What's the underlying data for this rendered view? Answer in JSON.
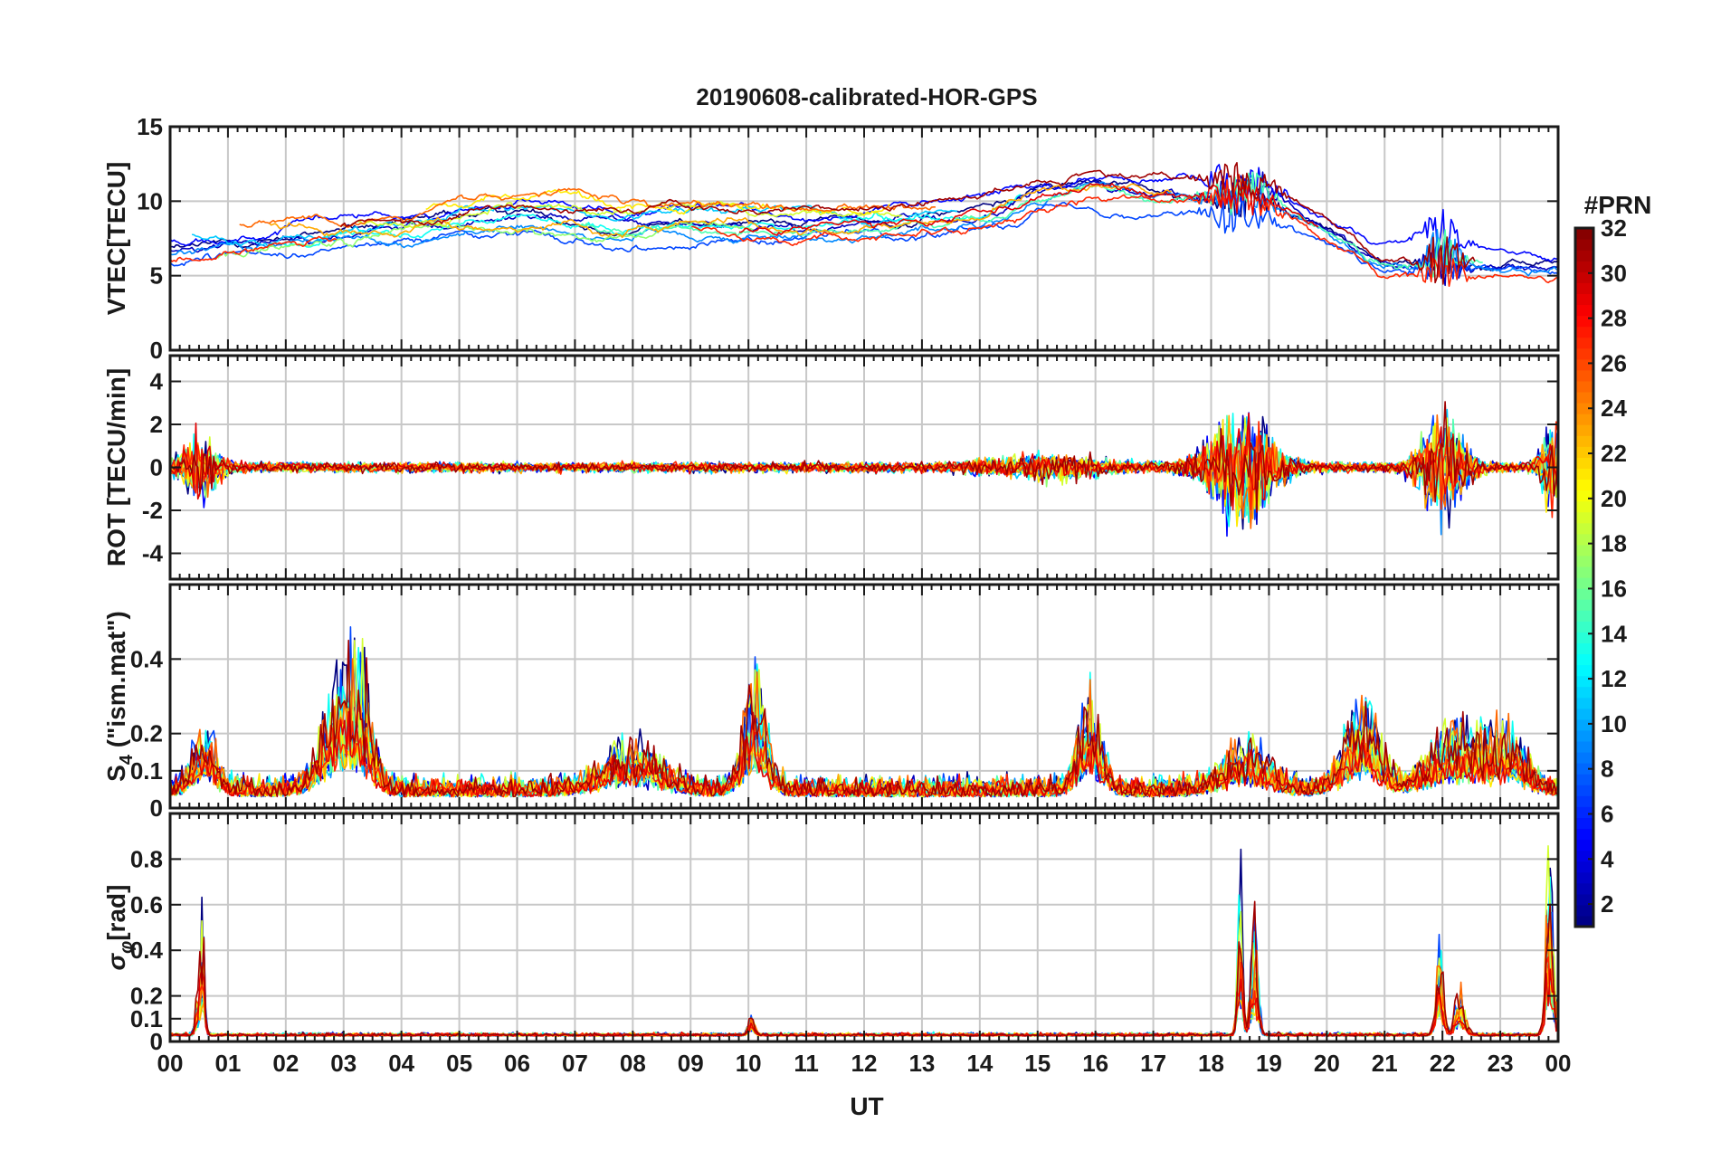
{
  "chart_data": {
    "type": "line",
    "title": "20190608-calibrated-HOR-GPS",
    "xlabel": "UT",
    "x_ticks": [
      "00",
      "01",
      "02",
      "03",
      "04",
      "05",
      "06",
      "07",
      "08",
      "09",
      "10",
      "11",
      "12",
      "13",
      "14",
      "15",
      "16",
      "17",
      "18",
      "19",
      "20",
      "21",
      "22",
      "23",
      "00"
    ],
    "xlim": [
      0,
      24
    ],
    "colorbar": {
      "label": "#PRN",
      "range": [
        1,
        32
      ],
      "ticks": [
        2,
        4,
        6,
        8,
        10,
        12,
        14,
        16,
        18,
        20,
        22,
        24,
        26,
        28,
        30,
        32
      ],
      "tick_labels": [
        "2",
        "4",
        "6",
        "8",
        "10",
        "12",
        "14",
        "16",
        "18",
        "20",
        "22",
        "24",
        "26",
        "28",
        "30",
        "32"
      ],
      "colormap": "jet"
    },
    "panels": [
      {
        "id": "vtec",
        "ylabel": "VTEC[TECU]",
        "ylim": [
          0,
          15
        ],
        "yticks": [
          0,
          5,
          10,
          15
        ],
        "ytick_labels": [
          "0",
          "5",
          "10",
          "15"
        ],
        "kind": "smooth",
        "baseline_profile": {
          "x": [
            0,
            1,
            2,
            3,
            4,
            5,
            6,
            7,
            8,
            9,
            10,
            11,
            12,
            13,
            14,
            15,
            16,
            17,
            18,
            19,
            20,
            21,
            22,
            23,
            24
          ],
          "y": [
            6.8,
            7.0,
            7.4,
            7.8,
            8.1,
            8.6,
            8.9,
            8.6,
            8.4,
            8.6,
            8.5,
            8.3,
            8.6,
            8.8,
            9.2,
            10.6,
            11.2,
            10.8,
            10.4,
            10.3,
            8.2,
            6.0,
            6.0,
            5.8,
            5.6
          ]
        },
        "spread": 1.2,
        "noise": 0.25,
        "events": [
          {
            "center": 18.5,
            "width": 0.4,
            "amp": 2.0
          },
          {
            "center": 22.0,
            "width": 0.25,
            "amp": 2.5
          }
        ]
      },
      {
        "id": "rot",
        "ylabel": "ROT [TECU/min]",
        "ylim": [
          -5.2,
          5.2
        ],
        "yticks": [
          -4,
          -2,
          0,
          2,
          4
        ],
        "ytick_labels": [
          "-4",
          "-2",
          "0",
          "2",
          "4"
        ],
        "kind": "noise",
        "noise": 0.18,
        "events": [
          {
            "center": 0.5,
            "width": 0.25,
            "amp": 2.0
          },
          {
            "center": 15.2,
            "width": 0.8,
            "amp": 0.6
          },
          {
            "center": 18.5,
            "width": 0.45,
            "amp": 3.5
          },
          {
            "center": 22.0,
            "width": 0.3,
            "amp": 3.5
          },
          {
            "center": 23.9,
            "width": 0.15,
            "amp": 3.0
          }
        ]
      },
      {
        "id": "s4",
        "ylabel": "S4 (\"ism.mat\")",
        "ylim": [
          0,
          0.6
        ],
        "yticks": [
          0,
          0.1,
          0.2,
          0.4
        ],
        "ytick_labels": [
          "0",
          "0.1",
          "0.2",
          "0.4"
        ],
        "kind": "positive",
        "base": 0.05,
        "noise": 0.04,
        "events": [
          {
            "center": 0.6,
            "width": 0.2,
            "amp": 0.2
          },
          {
            "center": 2.9,
            "width": 0.3,
            "amp": 0.3
          },
          {
            "center": 3.3,
            "width": 0.2,
            "amp": 0.3
          },
          {
            "center": 8.0,
            "width": 0.5,
            "amp": 0.15
          },
          {
            "center": 10.1,
            "width": 0.2,
            "amp": 0.35
          },
          {
            "center": 15.9,
            "width": 0.2,
            "amp": 0.32
          },
          {
            "center": 18.6,
            "width": 0.4,
            "amp": 0.15
          },
          {
            "center": 20.6,
            "width": 0.3,
            "amp": 0.28
          },
          {
            "center": 22.3,
            "width": 0.5,
            "amp": 0.2
          },
          {
            "center": 23.2,
            "width": 0.3,
            "amp": 0.15
          }
        ]
      },
      {
        "id": "sigphi",
        "ylabel": "σ_φ[rad]",
        "ylim": [
          0,
          1.0
        ],
        "yticks": [
          0,
          0.1,
          0.2,
          0.4,
          0.6,
          0.8
        ],
        "ytick_labels": [
          "0",
          "0.1",
          "0.2",
          "0.4",
          "0.6",
          "0.8"
        ],
        "kind": "positive",
        "base": 0.04,
        "noise": 0.01,
        "events": [
          {
            "center": 0.55,
            "width": 0.04,
            "amp": 0.67
          },
          {
            "center": 0.45,
            "width": 0.03,
            "amp": 0.15
          },
          {
            "center": 10.05,
            "width": 0.05,
            "amp": 0.1
          },
          {
            "center": 18.5,
            "width": 0.04,
            "amp": 0.88
          },
          {
            "center": 18.75,
            "width": 0.06,
            "amp": 0.6
          },
          {
            "center": 21.95,
            "width": 0.06,
            "amp": 0.52
          },
          {
            "center": 22.3,
            "width": 0.08,
            "amp": 0.25
          },
          {
            "center": 23.85,
            "width": 0.06,
            "amp": 0.95
          }
        ]
      }
    ],
    "series_count": 16,
    "prn_ids": [
      1,
      3,
      5,
      7,
      9,
      11,
      13,
      15,
      17,
      19,
      21,
      23,
      25,
      27,
      29,
      31
    ]
  }
}
